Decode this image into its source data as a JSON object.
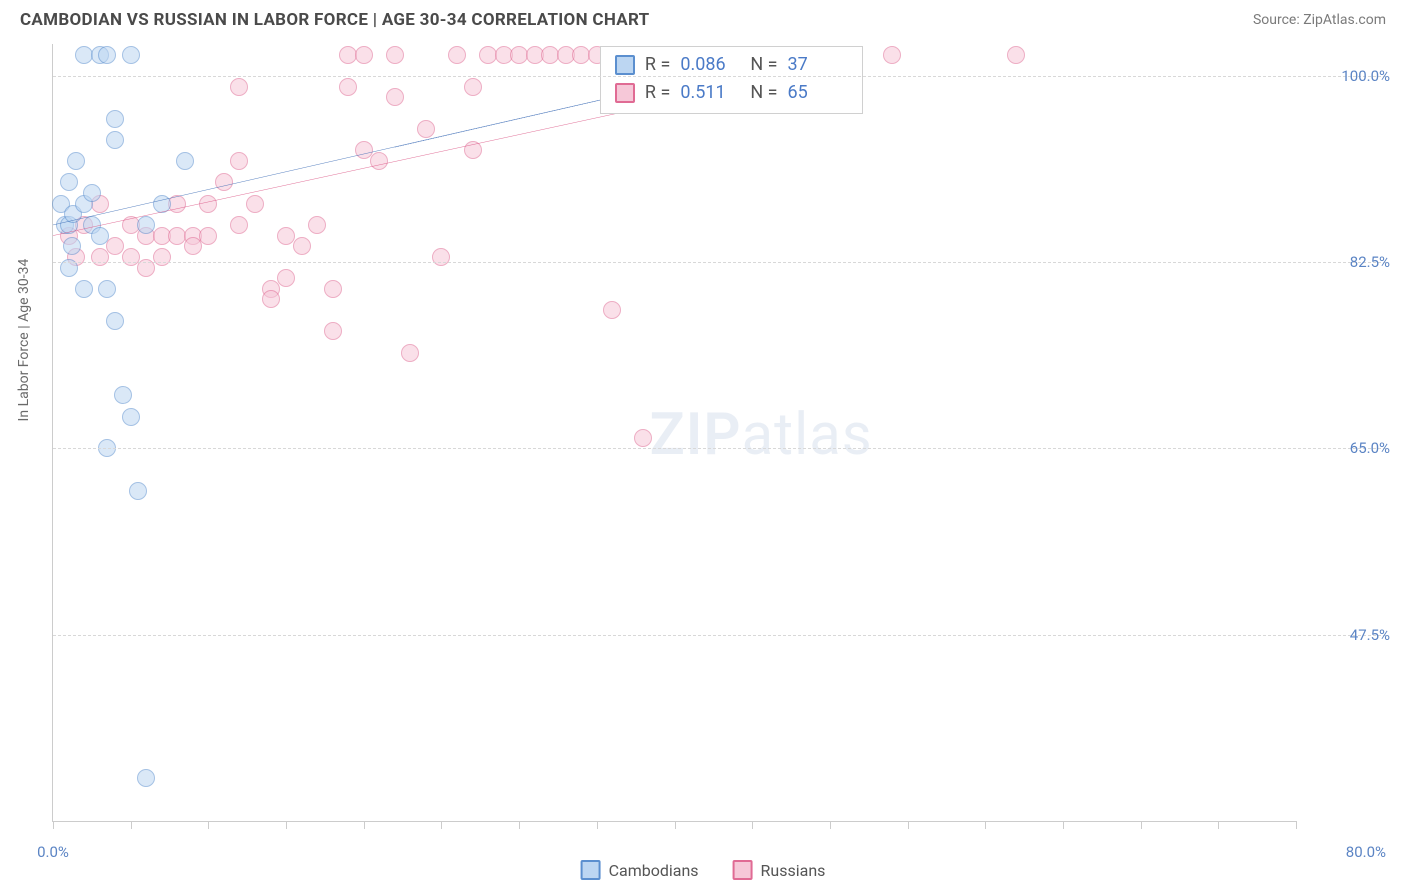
{
  "header": {
    "title": "CAMBODIAN VS RUSSIAN IN LABOR FORCE | AGE 30-34 CORRELATION CHART",
    "source": "Source: ZipAtlas.com"
  },
  "chart": {
    "type": "scatter",
    "y_axis_title": "In Labor Force | Age 30-34",
    "xlim": [
      0,
      80
    ],
    "ylim": [
      30,
      103
    ],
    "x_min_label": "0.0%",
    "x_max_label": "80.0%",
    "y_gridlines": [
      {
        "v": 100.0,
        "label": "100.0%"
      },
      {
        "v": 82.5,
        "label": "82.5%"
      },
      {
        "v": 65.0,
        "label": "65.0%"
      },
      {
        "v": 47.5,
        "label": "47.5%"
      }
    ],
    "x_ticks": [
      0,
      5,
      10,
      15,
      20,
      25,
      30,
      35,
      40,
      45,
      50,
      55,
      60,
      65,
      70,
      75,
      80
    ],
    "background_color": "#ffffff",
    "grid_color": "#d8d8d8",
    "marker_radius": 9,
    "marker_opacity": 0.55,
    "watermark": "ZIPatlas",
    "series": {
      "cambodians": {
        "label": "Cambodians",
        "fill": "#bcd6f2",
        "stroke": "#5b8fcf",
        "trend_color": "#2d61b0",
        "r": 0.086,
        "n": 37,
        "trend": {
          "x1": 0,
          "y1": 86,
          "x2": 45,
          "y2": 101
        },
        "trend_dash": {
          "x1": 22,
          "y1": 93.3,
          "x2": 45,
          "y2": 101
        },
        "points": [
          [
            0.5,
            88
          ],
          [
            0.8,
            86
          ],
          [
            1.0,
            90
          ],
          [
            1.0,
            86
          ],
          [
            1.3,
            87
          ],
          [
            1.5,
            92
          ],
          [
            1.2,
            84
          ],
          [
            2.0,
            102
          ],
          [
            3.0,
            102
          ],
          [
            3.5,
            102
          ],
          [
            5.0,
            102
          ],
          [
            2.0,
            88
          ],
          [
            2.5,
            86
          ],
          [
            3.0,
            85
          ],
          [
            4.0,
            94
          ],
          [
            4.0,
            96
          ],
          [
            8.5,
            92
          ],
          [
            3.5,
            80
          ],
          [
            4.0,
            77
          ],
          [
            3.5,
            65
          ],
          [
            4.5,
            70
          ],
          [
            5.0,
            68
          ],
          [
            5.5,
            61
          ],
          [
            6.0,
            34
          ],
          [
            7.0,
            88
          ],
          [
            1.0,
            82
          ],
          [
            2.0,
            80
          ],
          [
            2.5,
            89
          ],
          [
            6.0,
            86
          ]
        ]
      },
      "russians": {
        "label": "Russians",
        "fill": "#f6c8d8",
        "stroke": "#e06b94",
        "trend_color": "#d94b7e",
        "r": 0.511,
        "n": 65,
        "trend": {
          "x1": 0,
          "y1": 85,
          "x2": 49,
          "y2": 100.5
        },
        "points": [
          [
            1,
            85
          ],
          [
            1.5,
            83
          ],
          [
            2,
            86
          ],
          [
            3,
            83
          ],
          [
            3,
            88
          ],
          [
            4,
            84
          ],
          [
            5,
            86
          ],
          [
            5,
            83
          ],
          [
            6,
            85
          ],
          [
            6,
            82
          ],
          [
            7,
            85
          ],
          [
            7,
            83
          ],
          [
            8,
            85
          ],
          [
            8,
            88
          ],
          [
            9,
            85
          ],
          [
            9,
            84
          ],
          [
            10,
            88
          ],
          [
            10,
            85
          ],
          [
            11,
            90
          ],
          [
            12,
            86
          ],
          [
            12,
            92
          ],
          [
            12,
            99
          ],
          [
            13,
            88
          ],
          [
            14,
            80
          ],
          [
            14,
            79
          ],
          [
            15,
            85
          ],
          [
            15,
            81
          ],
          [
            16,
            84
          ],
          [
            17,
            86
          ],
          [
            18,
            76
          ],
          [
            18,
            80
          ],
          [
            19,
            102
          ],
          [
            19,
            99
          ],
          [
            20,
            93
          ],
          [
            20,
            102
          ],
          [
            21,
            92
          ],
          [
            22,
            102
          ],
          [
            22,
            98
          ],
          [
            23,
            74
          ],
          [
            24,
            95
          ],
          [
            25,
            83
          ],
          [
            26,
            102
          ],
          [
            27,
            99
          ],
          [
            27,
            93
          ],
          [
            28,
            102
          ],
          [
            29,
            102
          ],
          [
            30,
            102
          ],
          [
            31,
            102
          ],
          [
            32,
            102
          ],
          [
            33,
            102
          ],
          [
            34,
            102
          ],
          [
            35,
            102
          ],
          [
            36,
            78
          ],
          [
            37,
            102
          ],
          [
            38,
            66
          ],
          [
            40,
            102
          ],
          [
            42,
            102
          ],
          [
            44,
            102
          ],
          [
            47,
            102
          ],
          [
            54,
            102
          ],
          [
            62,
            102
          ]
        ]
      }
    },
    "legend_stats": [
      {
        "series": "cambodians",
        "r_label": "R =",
        "r_val": "0.086",
        "n_label": "N =",
        "n_val": "37"
      },
      {
        "series": "russians",
        "r_label": "R =",
        "r_val": "0.511",
        "n_label": "N =",
        "n_val": "65"
      }
    ]
  }
}
